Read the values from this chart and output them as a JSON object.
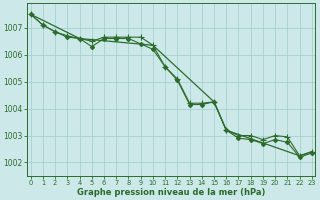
{
  "line_flat": {
    "x": [
      0,
      1,
      2,
      3,
      4,
      5,
      6,
      7,
      8,
      9,
      10,
      11,
      12,
      13,
      14,
      15,
      16,
      17,
      18,
      19,
      20,
      21,
      22,
      23
    ],
    "y": [
      1007.5,
      1007.1,
      1006.85,
      1006.7,
      1006.6,
      1006.5,
      1006.65,
      1006.65,
      1006.65,
      1006.65,
      1006.35,
      1005.55,
      1005.1,
      1004.2,
      1004.2,
      1004.25,
      1003.2,
      1003.0,
      1003.0,
      1002.85,
      1003.0,
      1002.95,
      1002.25,
      1002.4
    ]
  },
  "line_step": {
    "x": [
      0,
      1,
      2,
      3,
      4,
      5,
      6,
      7,
      8,
      9,
      10,
      11,
      12,
      13,
      14,
      15,
      16,
      17,
      18,
      19,
      20,
      21,
      22,
      23
    ],
    "y": [
      1007.5,
      1007.1,
      1006.85,
      1006.65,
      1006.6,
      1006.3,
      1006.6,
      1006.6,
      1006.6,
      1006.4,
      1006.2,
      1005.55,
      1005.05,
      1004.15,
      1004.15,
      1004.25,
      1003.2,
      1002.9,
      1002.85,
      1002.7,
      1002.85,
      1002.75,
      1002.2,
      1002.35
    ]
  },
  "line_diagonal": {
    "x": [
      0,
      4,
      10,
      15,
      16,
      22,
      23
    ],
    "y": [
      1007.5,
      1006.6,
      1006.35,
      1004.25,
      1003.2,
      1002.25,
      1002.4
    ]
  },
  "x": [
    0,
    1,
    2,
    3,
    4,
    5,
    6,
    7,
    8,
    9,
    10,
    11,
    12,
    13,
    14,
    15,
    16,
    17,
    18,
    19,
    20,
    21,
    22,
    23
  ],
  "ylim": [
    1001.5,
    1007.9
  ],
  "yticks": [
    1002,
    1003,
    1004,
    1005,
    1006,
    1007
  ],
  "xticks": [
    0,
    1,
    2,
    3,
    4,
    5,
    6,
    7,
    8,
    9,
    10,
    11,
    12,
    13,
    14,
    15,
    16,
    17,
    18,
    19,
    20,
    21,
    22,
    23
  ],
  "line_color": "#2d6b2d",
  "bg_color": "#cce8e8",
  "grid_color": "#a0cccc",
  "xlabel": "Graphe pression niveau de la mer (hPa)",
  "marker_plus": "+",
  "marker_diamond": "D",
  "marker_size_plus": 4.0,
  "marker_size_diamond": 2.0
}
